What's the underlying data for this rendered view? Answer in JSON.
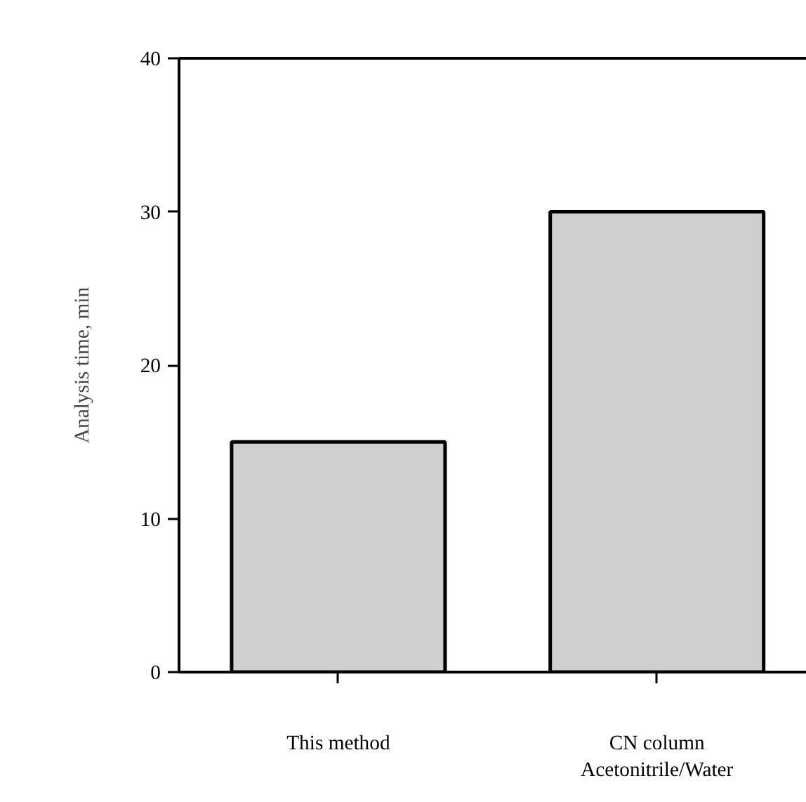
{
  "chart_data": {
    "type": "bar",
    "ylabel": "Analysis time, min",
    "categories": [
      "This method",
      "CN column\nAcetonitrile/Water"
    ],
    "values": [
      15,
      30
    ],
    "color": "#cfcfcf",
    "ylim": [
      0,
      40
    ],
    "yticks": [
      0,
      10,
      20,
      30,
      40
    ],
    "grid": false
  }
}
